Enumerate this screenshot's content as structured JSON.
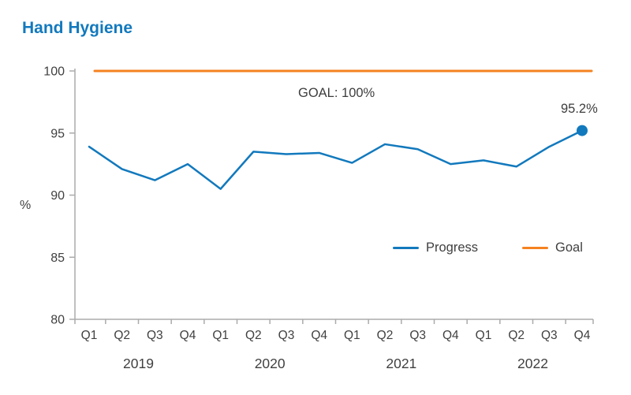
{
  "page": {
    "title": "Hand Hygiene"
  },
  "colors": {
    "accent_blue": "#1279bd",
    "accent_orange": "#f58220",
    "axis_gray": "#ababab",
    "text_gray": "#404040"
  },
  "chart_data": {
    "type": "line",
    "title": "Hand Hygiene",
    "ylabel": "%",
    "ylim": [
      80,
      100
    ],
    "yticks": [
      80,
      85,
      90,
      95,
      100
    ],
    "categories": [
      "Q1",
      "Q2",
      "Q3",
      "Q4",
      "Q1",
      "Q2",
      "Q3",
      "Q4",
      "Q1",
      "Q2",
      "Q3",
      "Q4",
      "Q1",
      "Q2",
      "Q3",
      "Q4"
    ],
    "year_groups": [
      "2019",
      "2020",
      "2021",
      "2022"
    ],
    "series": [
      {
        "name": "Progress",
        "color": "#1279bd",
        "values": [
          93.9,
          92.1,
          91.2,
          92.5,
          90.5,
          93.5,
          93.3,
          93.4,
          92.6,
          94.1,
          93.7,
          92.5,
          92.8,
          92.3,
          93.9,
          95.2
        ]
      },
      {
        "name": "Goal",
        "color": "#f58220",
        "constant_value": 100
      }
    ],
    "goal_value": 100,
    "grid": false,
    "legend_position": "inside-bottom-right",
    "annotations": {
      "goal_label": "GOAL: 100%",
      "last_value_label": "95.2%"
    },
    "legend": [
      {
        "label": "Progress",
        "color": "#1279bd"
      },
      {
        "label": "Goal",
        "color": "#f58220"
      }
    ]
  }
}
